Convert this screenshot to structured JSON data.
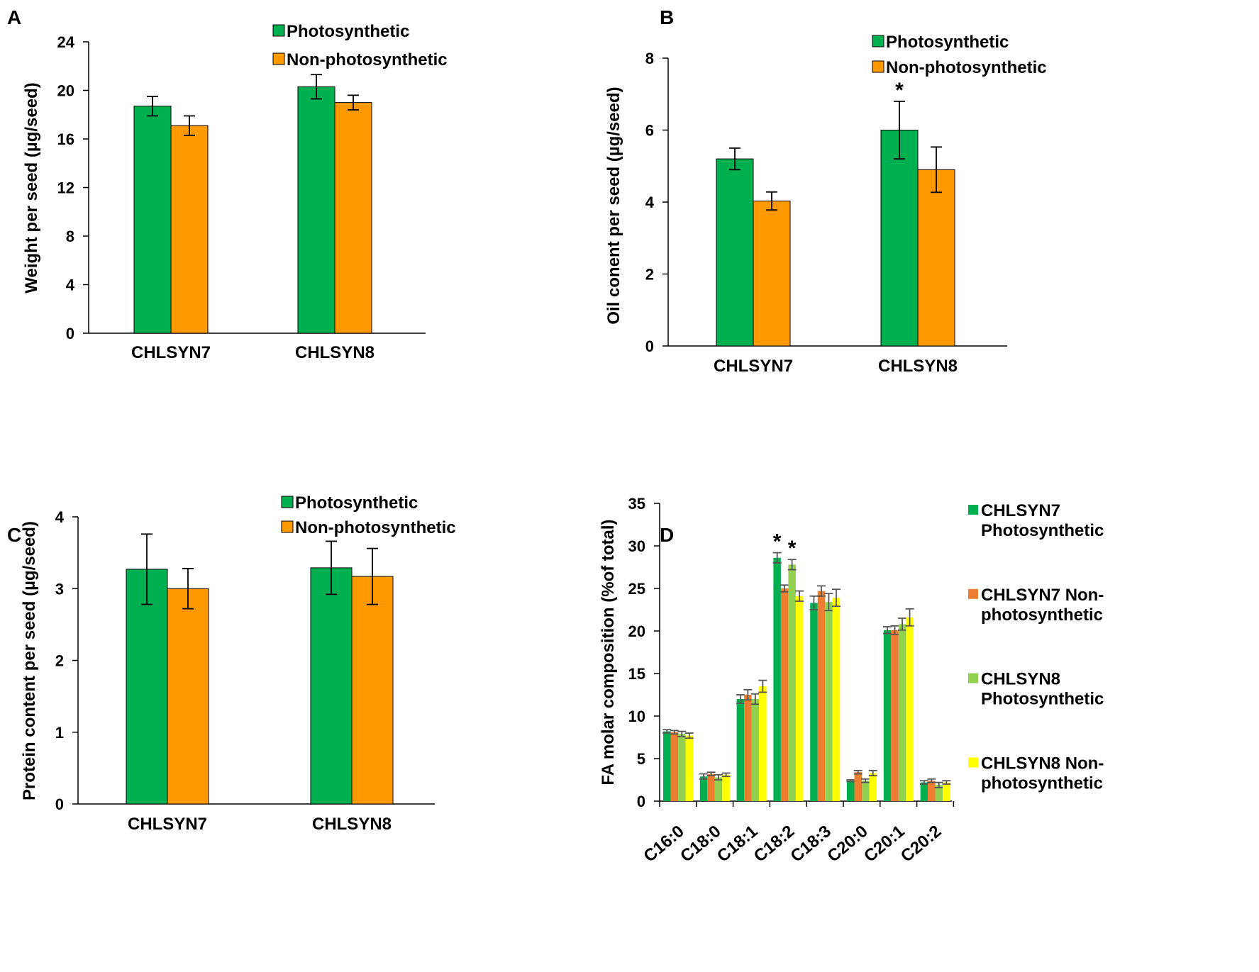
{
  "colors": {
    "photosynthetic": "#00b050",
    "non_photosynthetic": "#ff9900",
    "chlsyn7_photo": "#00b050",
    "chlsyn7_nonphoto": "#ed7d31",
    "chlsyn8_photo": "#92d050",
    "chlsyn8_nonphoto": "#ffff00"
  },
  "chart_data": [
    {
      "panel": "A",
      "type": "bar",
      "categories": [
        "CHLSYN7",
        "CHLSYN8"
      ],
      "series": [
        {
          "name": "Photosynthetic",
          "color_key": "photosynthetic",
          "values": [
            18.7,
            20.3
          ],
          "errors": [
            0.8,
            1.0
          ]
        },
        {
          "name": "Non-photosynthetic",
          "color_key": "non_photosynthetic",
          "values": [
            17.1,
            19.0
          ],
          "errors": [
            0.8,
            0.6
          ]
        }
      ],
      "ylabel": "Weight per seed (µg/seed)",
      "ylim": [
        0,
        24
      ],
      "yticks": [
        0,
        4,
        8,
        12,
        16,
        20,
        24
      ],
      "stars": [],
      "legend": "top-right"
    },
    {
      "panel": "B",
      "type": "bar",
      "categories": [
        "CHLSYN7",
        "CHLSYN8"
      ],
      "series": [
        {
          "name": "Photosynthetic",
          "color_key": "photosynthetic",
          "values": [
            5.2,
            6.0
          ],
          "errors": [
            0.3,
            0.8
          ]
        },
        {
          "name": "Non-photosynthetic",
          "color_key": "non_photosynthetic",
          "values": [
            4.03,
            4.9
          ],
          "errors": [
            0.25,
            0.63
          ]
        }
      ],
      "ylabel": "Oil conent per seed (µg/seed)",
      "ylim": [
        0,
        8
      ],
      "yticks": [
        0,
        2,
        4,
        6,
        8
      ],
      "stars": [
        {
          "category": 1,
          "series": 0,
          "label": "*"
        }
      ],
      "legend": "top-right"
    },
    {
      "panel": "C",
      "type": "bar",
      "categories": [
        "CHLSYN7",
        "CHLSYN8"
      ],
      "series": [
        {
          "name": "Photosynthetic",
          "color_key": "photosynthetic",
          "values": [
            3.27,
            3.29
          ],
          "errors": [
            0.49,
            0.37
          ]
        },
        {
          "name": "Non-photosynthetic",
          "color_key": "non_photosynthetic",
          "values": [
            3.0,
            3.17
          ],
          "errors": [
            0.28,
            0.39
          ]
        }
      ],
      "ylabel": "Protein content per seed  (µg/seed)",
      "ylim": [
        0,
        4
      ],
      "yticks": [
        0,
        1,
        2,
        3,
        4
      ],
      "stars": [],
      "legend": "top-right"
    },
    {
      "panel": "D",
      "type": "bar",
      "categories": [
        "C16:0",
        "C18:0",
        "C18:1",
        "C18:2",
        "C18:3",
        "C20:0",
        "C20:1",
        "C20:2"
      ],
      "series": [
        {
          "name": "CHLSYN7 Photosynthetic",
          "color_key": "chlsyn7_photo",
          "values": [
            8.2,
            2.9,
            12.0,
            28.6,
            23.3,
            2.4,
            20.1,
            2.2
          ],
          "errors": [
            0.2,
            0.3,
            0.5,
            0.6,
            0.8,
            0.1,
            0.4,
            0.2
          ]
        },
        {
          "name": "CHLSYN7 Non-photosynthetic",
          "color_key": "chlsyn7_nonphoto",
          "values": [
            8.1,
            3.2,
            12.5,
            25.0,
            24.7,
            3.4,
            20.1,
            2.4
          ],
          "errors": [
            0.2,
            0.2,
            0.6,
            0.4,
            0.6,
            0.2,
            0.5,
            0.2
          ]
        },
        {
          "name": "CHLSYN8 Photosynthetic",
          "color_key": "chlsyn8_photo",
          "values": [
            7.9,
            2.8,
            12.0,
            27.8,
            23.4,
            2.4,
            20.8,
            1.9
          ],
          "errors": [
            0.3,
            0.3,
            0.6,
            0.6,
            1.0,
            0.2,
            0.7,
            0.3
          ]
        },
        {
          "name": "CHLSYN8 Non-photosynthetic",
          "color_key": "chlsyn8_nonphoto",
          "values": [
            7.7,
            3.1,
            13.5,
            24.1,
            23.9,
            3.3,
            21.6,
            2.2
          ],
          "errors": [
            0.3,
            0.2,
            0.7,
            0.6,
            1.0,
            0.3,
            1.0,
            0.2
          ]
        }
      ],
      "ylabel": "FA molar composition (%of total)",
      "ylim": [
        0,
        35
      ],
      "yticks": [
        0,
        5,
        10,
        15,
        20,
        25,
        30,
        35
      ],
      "stars": [
        {
          "category": 3,
          "series": 0,
          "label": "*"
        },
        {
          "category": 3,
          "series": 2,
          "label": "*"
        }
      ],
      "legend": "right",
      "legend_lines": [
        [
          "CHLSYN7",
          "Photosynthetic"
        ],
        [
          "CHLSYN7 Non-",
          "photosynthetic"
        ],
        [
          "CHLSYN8",
          "Photosynthetic"
        ],
        [
          "CHLSYN8 Non-",
          "photosynthetic"
        ]
      ]
    }
  ]
}
